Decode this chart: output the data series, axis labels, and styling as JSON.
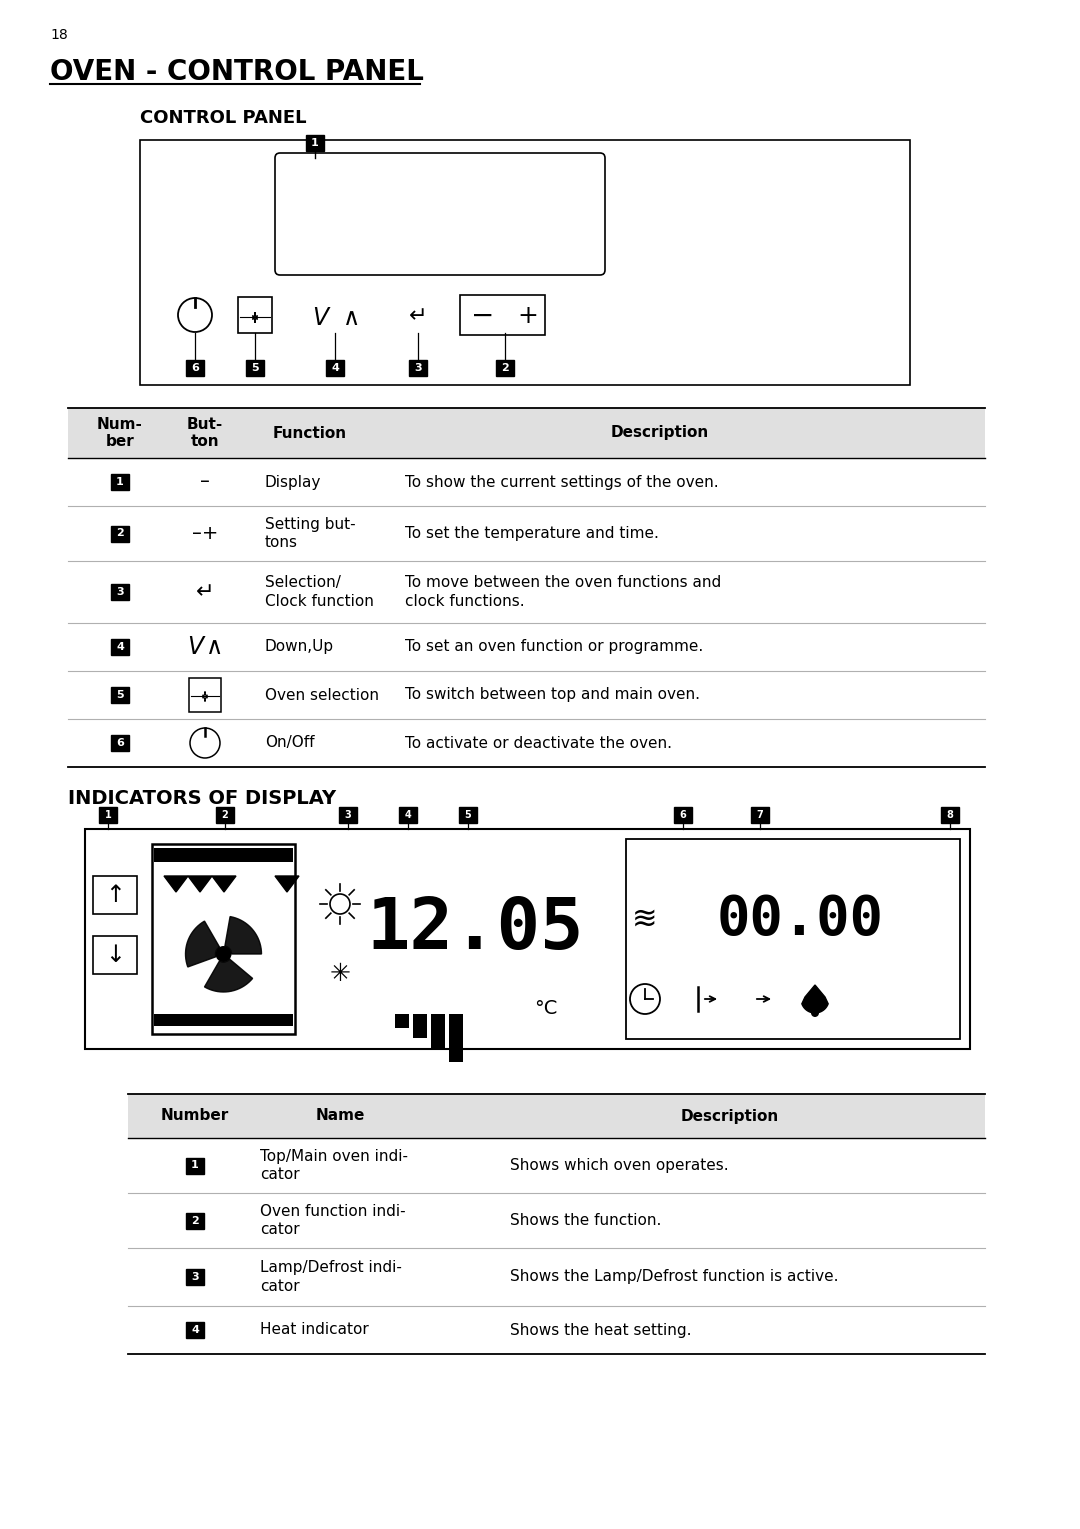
{
  "page_number": "18",
  "main_title": "OVEN - CONTROL PANEL",
  "section1_title": "CONTROL PANEL",
  "section2_title": "INDICATORS OF DISPLAY",
  "table1_rows": [
    {
      "num": "1",
      "func": "Display",
      "desc": "To show the current settings of the oven."
    },
    {
      "num": "2",
      "func": "Setting but-\ntons",
      "desc": "To set the temperature and time."
    },
    {
      "num": "3",
      "func": "Selection/\nClock function",
      "desc": "To move between the oven functions and\nclock functions."
    },
    {
      "num": "4",
      "func": "Down,Up",
      "desc": "To set an oven function or programme."
    },
    {
      "num": "5",
      "func": "Oven selection",
      "desc": "To switch between top and main oven."
    },
    {
      "num": "6",
      "func": "On/Off",
      "desc": "To activate or deactivate the oven."
    }
  ],
  "table2_rows": [
    {
      "num": "1",
      "name": "Top/Main oven indi-\ncator",
      "desc": "Shows which oven operates."
    },
    {
      "num": "2",
      "name": "Oven function indi-\ncator",
      "desc": "Shows the function."
    },
    {
      "num": "3",
      "name": "Lamp/Defrost indi-\ncator",
      "desc": "Shows the Lamp/Defrost function is active."
    },
    {
      "num": "4",
      "name": "Heat indicator",
      "desc": "Shows the heat setting."
    }
  ]
}
